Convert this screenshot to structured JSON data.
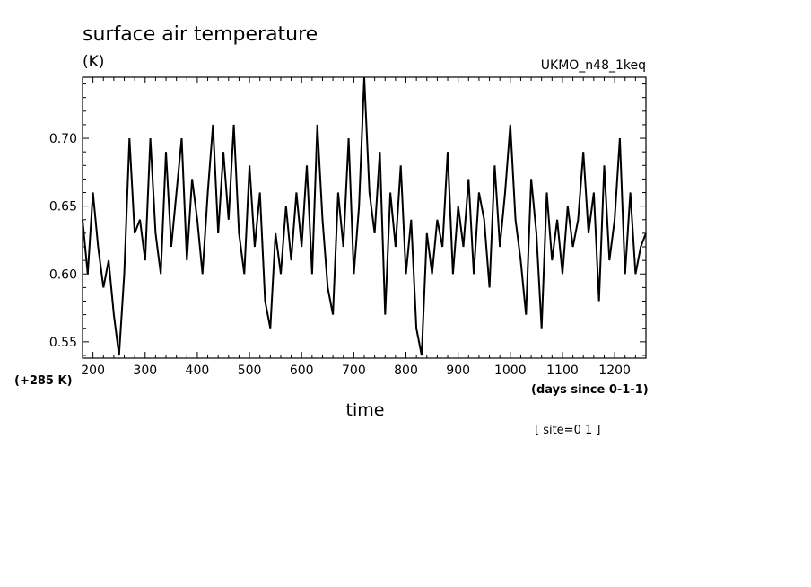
{
  "chart_data": {
    "type": "line",
    "title": "surface air temperature",
    "unit_label": "(K)",
    "source_label": "UKMO_n48_1keq",
    "y_offset_label": "(+285 K)",
    "xlabel": "time",
    "x_unit_label": "(days since 0-1-1)",
    "site_label": "[ site=0 1 ]",
    "xlim": [
      180,
      1260
    ],
    "ylim": [
      0.538,
      0.745
    ],
    "x_ticks": [
      200,
      300,
      400,
      500,
      600,
      700,
      800,
      900,
      1000,
      1100,
      1200
    ],
    "x_tick_labels": [
      "200",
      "300",
      "400",
      "500",
      "600",
      "700",
      "800",
      "900",
      "1000",
      "1100",
      "1200"
    ],
    "y_ticks": [
      0.55,
      0.6,
      0.65,
      0.7
    ],
    "y_tick_labels": [
      "0.55",
      "0.60",
      "0.65",
      "0.70"
    ],
    "grid": false,
    "line_color": "#000000",
    "series": [
      {
        "x": [
          180,
          190,
          200,
          210,
          220,
          230,
          240,
          250,
          260,
          270,
          280,
          290,
          300,
          310,
          320,
          330,
          340,
          350,
          360,
          370,
          380,
          390,
          400,
          410,
          420,
          430,
          440,
          450,
          460,
          470,
          480,
          490,
          500,
          510,
          520,
          530,
          540,
          550,
          560,
          570,
          580,
          590,
          600,
          610,
          620,
          630,
          640,
          650,
          660,
          670,
          680,
          690,
          700,
          710,
          720,
          730,
          740,
          750,
          760,
          770,
          780,
          790,
          800,
          810,
          820,
          830,
          840,
          850,
          860,
          870,
          880,
          890,
          900,
          910,
          920,
          930,
          940,
          950,
          960,
          970,
          980,
          990,
          1000,
          1010,
          1020,
          1030,
          1040,
          1050,
          1060,
          1070,
          1080,
          1090,
          1100,
          1110,
          1120,
          1130,
          1140,
          1150,
          1160,
          1170,
          1180,
          1190,
          1200,
          1210,
          1220,
          1230,
          1240,
          1250,
          1260
        ],
        "y": [
          0.64,
          0.6,
          0.66,
          0.62,
          0.59,
          0.61,
          0.57,
          0.54,
          0.6,
          0.7,
          0.63,
          0.64,
          0.61,
          0.7,
          0.63,
          0.6,
          0.69,
          0.62,
          0.66,
          0.7,
          0.61,
          0.67,
          0.64,
          0.6,
          0.66,
          0.71,
          0.63,
          0.69,
          0.64,
          0.71,
          0.63,
          0.6,
          0.68,
          0.62,
          0.66,
          0.58,
          0.56,
          0.63,
          0.6,
          0.65,
          0.61,
          0.66,
          0.62,
          0.68,
          0.6,
          0.71,
          0.64,
          0.59,
          0.57,
          0.66,
          0.62,
          0.7,
          0.6,
          0.65,
          0.745,
          0.66,
          0.63,
          0.69,
          0.57,
          0.66,
          0.62,
          0.68,
          0.6,
          0.64,
          0.56,
          0.54,
          0.63,
          0.6,
          0.64,
          0.62,
          0.69,
          0.6,
          0.65,
          0.62,
          0.67,
          0.6,
          0.66,
          0.64,
          0.59,
          0.68,
          0.62,
          0.66,
          0.71,
          0.64,
          0.61,
          0.57,
          0.67,
          0.63,
          0.56,
          0.66,
          0.61,
          0.64,
          0.6,
          0.65,
          0.62,
          0.64,
          0.69,
          0.63,
          0.66,
          0.58,
          0.68,
          0.61,
          0.64,
          0.7,
          0.6,
          0.66,
          0.6,
          0.62,
          0.63
        ]
      }
    ]
  }
}
